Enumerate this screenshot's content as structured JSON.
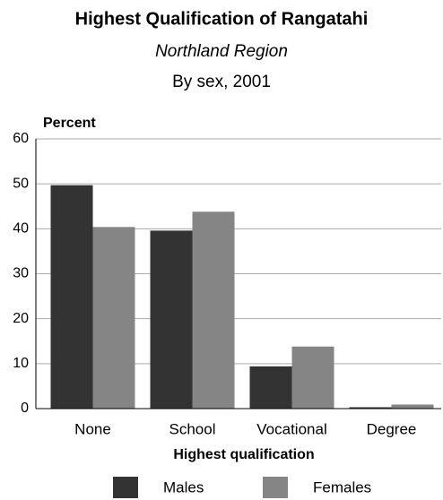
{
  "chart_data": {
    "type": "bar",
    "title": "Highest Qualification of Rangatahi",
    "subtitle": "Northland Region",
    "subtitle2": "By sex, 2001",
    "y_label": "Percent",
    "x_label": "Highest qualification",
    "categories": [
      "None",
      "School",
      "Vocational",
      "Degree"
    ],
    "series": [
      {
        "name": "Males",
        "color": "#333333",
        "values": [
          49.7,
          39.6,
          9.4,
          0.3
        ]
      },
      {
        "name": "Females",
        "color": "#858585",
        "values": [
          40.4,
          43.8,
          13.8,
          0.9
        ]
      }
    ],
    "ylim": [
      0,
      60
    ],
    "yticks": [
      0,
      10,
      20,
      30,
      40,
      50,
      60
    ],
    "grid": true
  }
}
